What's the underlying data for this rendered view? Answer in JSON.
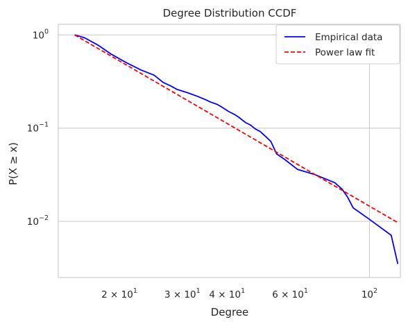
{
  "chart_data": {
    "type": "line",
    "title": "Degree Distribution CCDF",
    "xlabel": "Degree",
    "ylabel": "P(X ≥ x)",
    "x_scale": "log",
    "y_scale": "log",
    "xlim": [
      13.5,
      122
    ],
    "ylim": [
      0.0025,
      1.3
    ],
    "grid": true,
    "legend_position": "top-right",
    "x_ticks": [
      {
        "value": 20,
        "base": "2 × 10",
        "exp": "1"
      },
      {
        "value": 30,
        "base": "3 × 10",
        "exp": "1"
      },
      {
        "value": 40,
        "base": "4 × 10",
        "exp": "1"
      },
      {
        "value": 60,
        "base": "6 × 10",
        "exp": "1"
      },
      {
        "value": 100,
        "base": "10",
        "exp": "2"
      }
    ],
    "y_ticks": [
      {
        "value": 1,
        "base": "10",
        "exp": "0"
      },
      {
        "value": 0.1,
        "base": "10",
        "exp": "−1"
      },
      {
        "value": 0.01,
        "base": "10",
        "exp": "−2"
      }
    ],
    "series": [
      {
        "name": "Empirical data",
        "color": "#0000ff",
        "style": "solid",
        "x": [
          15.0,
          16.0,
          17.5,
          19.0,
          21.0,
          23.0,
          25.0,
          26.5,
          28.0,
          29.0,
          31.0,
          33.0,
          35.0,
          36.0,
          37.5,
          38.5,
          40.5,
          42.0,
          43.0,
          45.0,
          46.5,
          48.0,
          49.5,
          51.5,
          53.0,
          55.0,
          58.0,
          63.0,
          70.0,
          80.0,
          84.0,
          87.0,
          90.0,
          100.0,
          115.0,
          120.0
        ],
        "y": [
          1.0,
          0.93,
          0.77,
          0.62,
          0.5,
          0.42,
          0.37,
          0.31,
          0.28,
          0.26,
          0.24,
          0.22,
          0.2,
          0.19,
          0.18,
          0.17,
          0.15,
          0.14,
          0.132,
          0.115,
          0.108,
          0.098,
          0.092,
          0.08,
          0.072,
          0.053,
          0.046,
          0.036,
          0.032,
          0.026,
          0.022,
          0.018,
          0.014,
          0.0105,
          0.0071,
          0.0035
        ]
      },
      {
        "name": "Power law fit",
        "color": "#ff0000",
        "style": "dashed",
        "x": [
          15.0,
          120.0
        ],
        "y": [
          1.0,
          0.0097
        ]
      }
    ]
  }
}
